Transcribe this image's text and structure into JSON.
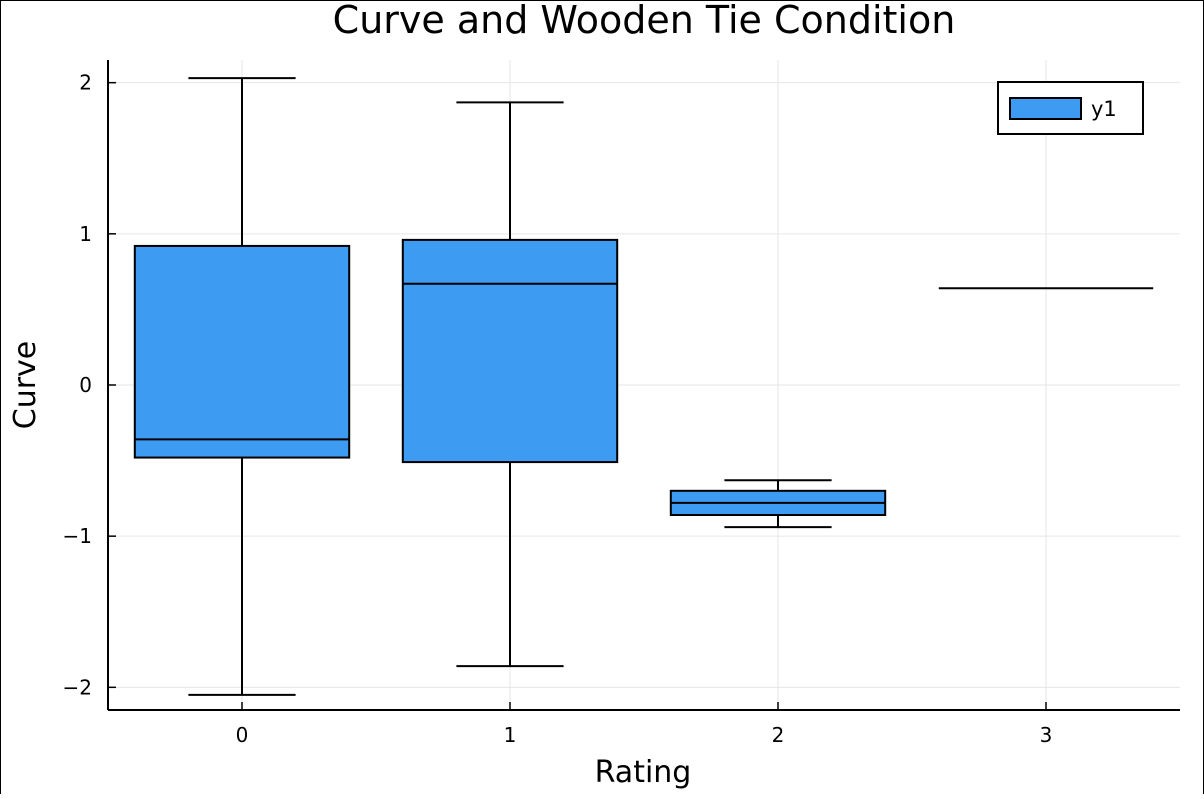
{
  "chart_data": {
    "type": "box",
    "title": "Curve and Wooden Tie Condition",
    "xlabel": "Rating",
    "ylabel": "Curve",
    "xlim": [
      -0.5,
      3.5
    ],
    "ylim": [
      -2.15,
      2.15
    ],
    "xticks": [
      0,
      1,
      2,
      3
    ],
    "xtick_labels": [
      "0",
      "1",
      "2",
      "3"
    ],
    "yticks": [
      -2,
      -1,
      0,
      1,
      2
    ],
    "ytick_labels": [
      "−2",
      "−1",
      "0",
      "1",
      "2"
    ],
    "grid": true,
    "legend": {
      "position": "top-right",
      "entries": [
        "y1"
      ]
    },
    "fill_color": "#3e9bf2",
    "series": [
      {
        "name": "y1",
        "boxes": [
          {
            "x": 0,
            "whisker_low": -2.05,
            "q1": -0.48,
            "median": -0.36,
            "q3": 0.92,
            "whisker_high": 2.03
          },
          {
            "x": 1,
            "whisker_low": -1.86,
            "q1": -0.51,
            "median": 0.67,
            "q3": 0.96,
            "whisker_high": 1.87
          },
          {
            "x": 2,
            "whisker_low": -0.94,
            "q1": -0.86,
            "median": -0.78,
            "q3": -0.7,
            "whisker_high": -0.63
          },
          {
            "x": 3,
            "whisker_low": 0.64,
            "q1": 0.64,
            "median": 0.64,
            "q3": 0.64,
            "whisker_high": 0.64
          }
        ]
      }
    ]
  }
}
